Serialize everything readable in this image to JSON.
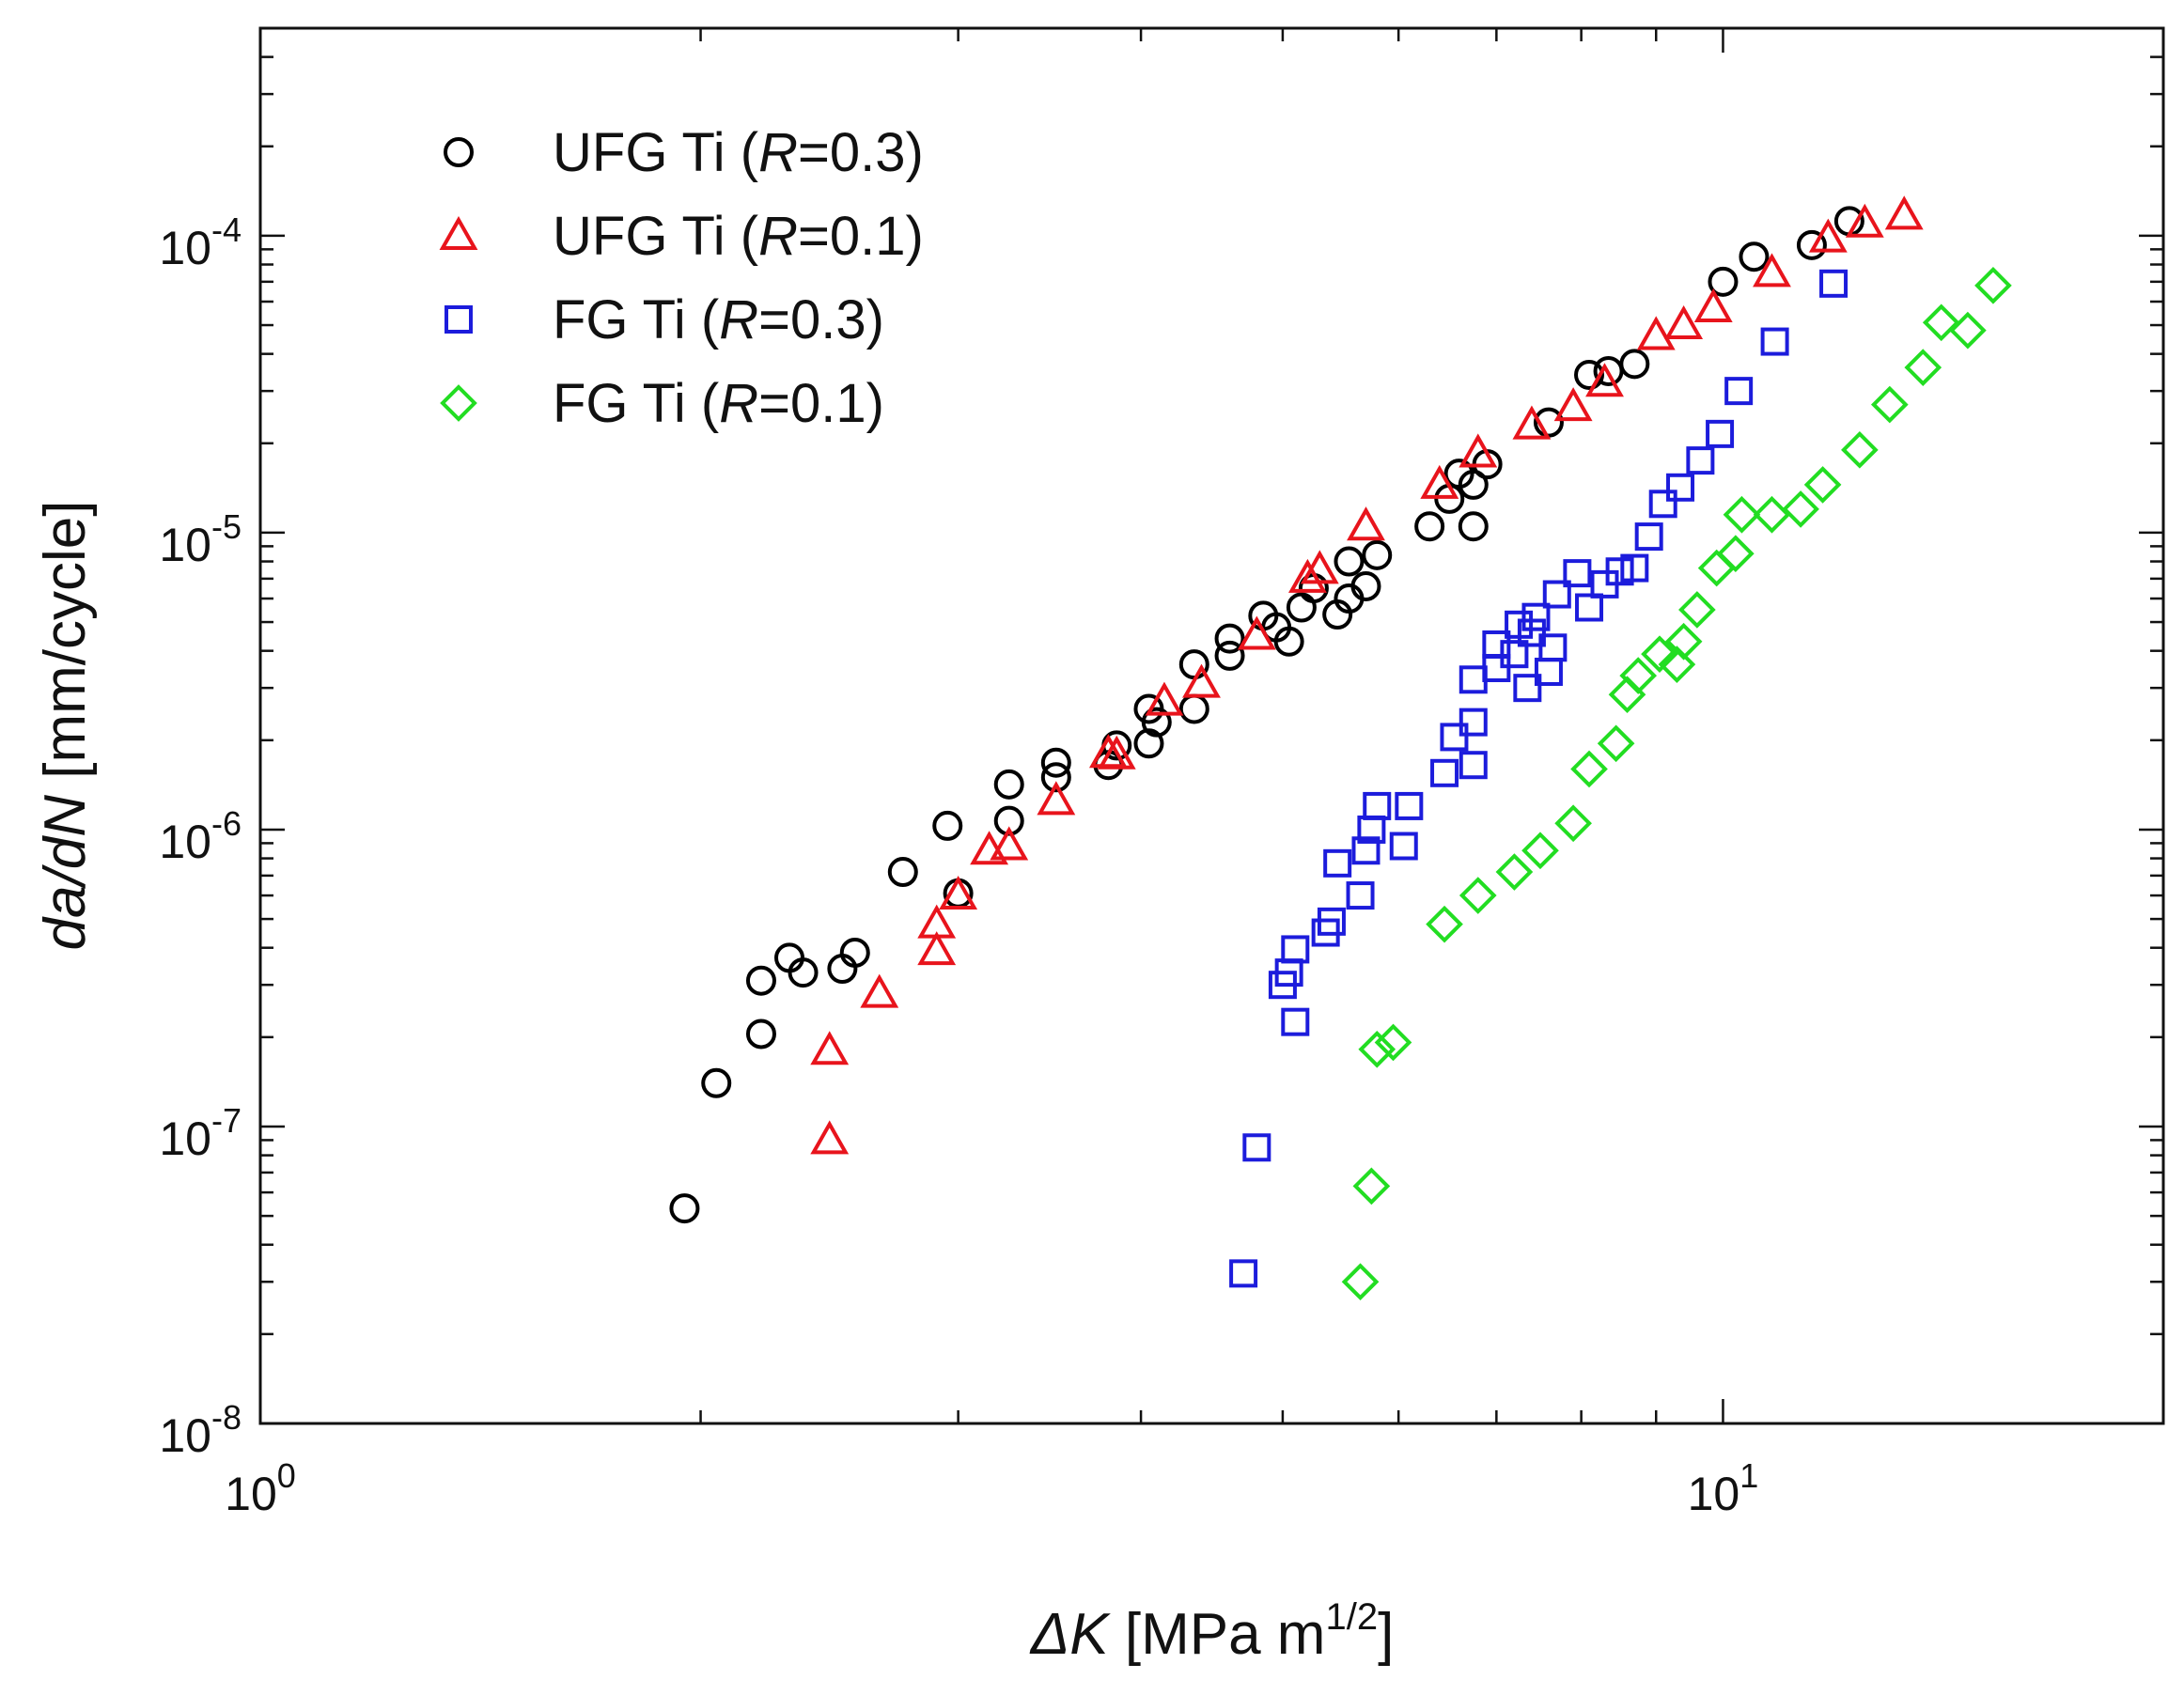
{
  "chart_data": {
    "type": "scatter",
    "title": "",
    "x_scale": "log",
    "y_scale": "log",
    "xlim": [
      1,
      20
    ],
    "ylim": [
      1e-08,
      0.0005
    ],
    "xlabel": {
      "var": "ΔK",
      "unit": " [MPa m",
      "exp": "1/2",
      "close": "]"
    },
    "ylabel": {
      "var": "da/dN",
      "unit": " [mm/cycle]"
    },
    "x_ticks": [
      {
        "value": 1,
        "base": "10",
        "exp": "0"
      },
      {
        "value": 10,
        "base": "10",
        "exp": "1"
      }
    ],
    "y_ticks": [
      {
        "value": 1e-08,
        "base": "10",
        "exp": "-8"
      },
      {
        "value": 1e-07,
        "base": "10",
        "exp": "-7"
      },
      {
        "value": 1e-06,
        "base": "10",
        "exp": "-6"
      },
      {
        "value": 1e-05,
        "base": "10",
        "exp": "-5"
      },
      {
        "value": 0.0001,
        "base": "10",
        "exp": "-4"
      }
    ],
    "legend_position": "top-left",
    "series": [
      {
        "name": "UFG Ti (R=0.3)",
        "label_prefix": "UFG Ti (",
        "label_italic": "R",
        "label_suffix": "=0.3)",
        "marker": "circle",
        "color": "#000000",
        "points": [
          [
            1.95,
            5.3e-08
          ],
          [
            2.05,
            1.4e-07
          ],
          [
            2.2,
            2.05e-07
          ],
          [
            2.2,
            3.1e-07
          ],
          [
            2.3,
            3.7e-07
          ],
          [
            2.35,
            3.3e-07
          ],
          [
            2.5,
            3.4e-07
          ],
          [
            2.55,
            3.85e-07
          ],
          [
            2.75,
            7.2e-07
          ],
          [
            2.95,
            1.03e-06
          ],
          [
            3.0,
            6.1e-07
          ],
          [
            3.25,
            1.07e-06
          ],
          [
            3.25,
            1.42e-06
          ],
          [
            3.5,
            1.5e-06
          ],
          [
            3.5,
            1.68e-06
          ],
          [
            3.8,
            1.65e-06
          ],
          [
            3.85,
            1.92e-06
          ],
          [
            4.05,
            1.95e-06
          ],
          [
            4.05,
            2.55e-06
          ],
          [
            4.1,
            2.3e-06
          ],
          [
            4.35,
            2.55e-06
          ],
          [
            4.35,
            3.6e-06
          ],
          [
            4.6,
            3.85e-06
          ],
          [
            4.6,
            4.4e-06
          ],
          [
            4.85,
            5.25e-06
          ],
          [
            4.95,
            4.8e-06
          ],
          [
            5.05,
            4.3e-06
          ],
          [
            5.15,
            5.6e-06
          ],
          [
            5.25,
            6.5e-06
          ],
          [
            5.45,
            5.3e-06
          ],
          [
            5.55,
            6e-06
          ],
          [
            5.55,
            8e-06
          ],
          [
            5.7,
            6.6e-06
          ],
          [
            5.8,
            8.4e-06
          ],
          [
            6.3,
            1.05e-05
          ],
          [
            6.5,
            1.3e-05
          ],
          [
            6.6,
            1.58e-05
          ],
          [
            6.75,
            1.05e-05
          ],
          [
            6.75,
            1.45e-05
          ],
          [
            6.9,
            1.7e-05
          ],
          [
            7.6,
            2.35e-05
          ],
          [
            8.1,
            3.4e-05
          ],
          [
            8.35,
            3.5e-05
          ],
          [
            8.7,
            3.7e-05
          ],
          [
            10.0,
            7e-05
          ],
          [
            10.5,
            8.5e-05
          ],
          [
            11.5,
            9.3e-05
          ],
          [
            12.2,
            0.000112
          ]
        ]
      },
      {
        "name": "UFG Ti (R=0.1)",
        "label_prefix": "UFG Ti (",
        "label_italic": "R",
        "label_suffix": "=0.1)",
        "marker": "triangle",
        "color": "#e8141c",
        "points": [
          [
            2.45,
            9e-08
          ],
          [
            2.45,
            1.8e-07
          ],
          [
            2.65,
            2.8e-07
          ],
          [
            2.9,
            3.9e-07
          ],
          [
            2.9,
            4.8e-07
          ],
          [
            3.0,
            6e-07
          ],
          [
            3.15,
            8.5e-07
          ],
          [
            3.25,
            8.8e-07
          ],
          [
            3.5,
            1.25e-06
          ],
          [
            3.8,
            1.8e-06
          ],
          [
            3.85,
            1.78e-06
          ],
          [
            4.15,
            2.7e-06
          ],
          [
            4.4,
            3.1e-06
          ],
          [
            4.8,
            4.5e-06
          ],
          [
            5.2,
            7e-06
          ],
          [
            5.3,
            7.5e-06
          ],
          [
            5.7,
            1.05e-05
          ],
          [
            6.4,
            1.45e-05
          ],
          [
            6.8,
            1.85e-05
          ],
          [
            7.4,
            2.3e-05
          ],
          [
            7.9,
            2.65e-05
          ],
          [
            8.3,
            3.2e-05
          ],
          [
            9.0,
            4.6e-05
          ],
          [
            9.4,
            5e-05
          ],
          [
            9.85,
            5.7e-05
          ],
          [
            10.8,
            7.5e-05
          ],
          [
            11.8,
            9.8e-05
          ],
          [
            12.5,
            0.00011
          ],
          [
            13.3,
            0.000117
          ]
        ]
      },
      {
        "name": "FG Ti (R=0.3)",
        "label_prefix": "FG Ti (",
        "label_italic": "R",
        "label_suffix": "=0.3)",
        "marker": "square",
        "color": "#1c1cdc",
        "points": [
          [
            4.7,
            3.2e-08
          ],
          [
            4.8,
            8.5e-08
          ],
          [
            5.0,
            3e-07
          ],
          [
            5.05,
            3.3e-07
          ],
          [
            5.1,
            2.25e-07
          ],
          [
            5.1,
            3.95e-07
          ],
          [
            5.35,
            4.5e-07
          ],
          [
            5.4,
            4.9e-07
          ],
          [
            5.45,
            7.7e-07
          ],
          [
            5.65,
            6e-07
          ],
          [
            5.7,
            8.5e-07
          ],
          [
            5.75,
            1e-06
          ],
          [
            5.8,
            1.2e-06
          ],
          [
            6.05,
            8.8e-07
          ],
          [
            6.1,
            1.2e-06
          ],
          [
            6.45,
            1.55e-06
          ],
          [
            6.55,
            2.05e-06
          ],
          [
            6.75,
            1.65e-06
          ],
          [
            6.75,
            2.3e-06
          ],
          [
            6.75,
            3.2e-06
          ],
          [
            7.0,
            3.5e-06
          ],
          [
            7.0,
            4.2e-06
          ],
          [
            7.2,
            3.9e-06
          ],
          [
            7.25,
            4.9e-06
          ],
          [
            7.35,
            3e-06
          ],
          [
            7.4,
            4.6e-06
          ],
          [
            7.45,
            5.2e-06
          ],
          [
            7.6,
            3.4e-06
          ],
          [
            7.65,
            4.1e-06
          ],
          [
            7.7,
            6.2e-06
          ],
          [
            7.95,
            7.3e-06
          ],
          [
            8.1,
            5.6e-06
          ],
          [
            8.3,
            6.7e-06
          ],
          [
            8.5,
            7.4e-06
          ],
          [
            8.7,
            7.6e-06
          ],
          [
            8.9,
            9.7e-06
          ],
          [
            9.1,
            1.25e-05
          ],
          [
            9.35,
            1.42e-05
          ],
          [
            9.65,
            1.75e-05
          ],
          [
            9.95,
            2.15e-05
          ],
          [
            10.25,
            3e-05
          ],
          [
            10.85,
            4.4e-05
          ],
          [
            11.9,
            6.9e-05
          ]
        ]
      },
      {
        "name": "FG Ti (R=0.1)",
        "label_prefix": "FG Ti (",
        "label_italic": "R",
        "label_suffix": "=0.1)",
        "marker": "diamond",
        "color": "#22dd22",
        "points": [
          [
            5.65,
            3e-08
          ],
          [
            5.75,
            6.3e-08
          ],
          [
            5.8,
            1.82e-07
          ],
          [
            5.95,
            1.92e-07
          ],
          [
            6.45,
            4.8e-07
          ],
          [
            6.8,
            6e-07
          ],
          [
            7.2,
            7.2e-07
          ],
          [
            7.5,
            8.5e-07
          ],
          [
            7.9,
            1.05e-06
          ],
          [
            8.1,
            1.6e-06
          ],
          [
            8.45,
            1.95e-06
          ],
          [
            8.6,
            2.85e-06
          ],
          [
            8.75,
            3.3e-06
          ],
          [
            9.05,
            3.9e-06
          ],
          [
            9.3,
            3.6e-06
          ],
          [
            9.4,
            4.3e-06
          ],
          [
            9.6,
            5.5e-06
          ],
          [
            9.9,
            7.6e-06
          ],
          [
            10.2,
            8.5e-06
          ],
          [
            10.3,
            1.15e-05
          ],
          [
            10.8,
            1.15e-05
          ],
          [
            11.3,
            1.2e-05
          ],
          [
            11.7,
            1.45e-05
          ],
          [
            12.4,
            1.9e-05
          ],
          [
            13.0,
            2.7e-05
          ],
          [
            13.7,
            3.6e-05
          ],
          [
            14.1,
            5.1e-05
          ],
          [
            14.7,
            4.8e-05
          ],
          [
            15.3,
            6.8e-05
          ]
        ]
      }
    ]
  }
}
